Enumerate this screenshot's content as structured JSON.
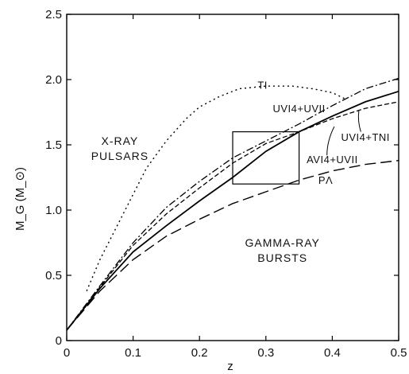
{
  "chart_data": {
    "type": "line",
    "xlabel": "z",
    "ylabel": "M_G (M_⊙)",
    "xlim": [
      0,
      0.5
    ],
    "ylim": [
      0,
      2.5
    ],
    "x_ticks": [
      "0",
      "0.1",
      "0.2",
      "0.3",
      "0.4",
      "0.5"
    ],
    "y_ticks": [
      "0",
      "0.5",
      "1.0",
      "1.5",
      "2.0",
      "2.5"
    ],
    "grid": false,
    "series": [
      {
        "name": "TI",
        "style": "dotted",
        "x": [
          0.03,
          0.05,
          0.08,
          0.1,
          0.12,
          0.15,
          0.18,
          0.2,
          0.23,
          0.26,
          0.3,
          0.34,
          0.37,
          0.4,
          0.42
        ],
        "y": [
          0.38,
          0.62,
          0.92,
          1.12,
          1.32,
          1.53,
          1.7,
          1.79,
          1.87,
          1.93,
          1.95,
          1.95,
          1.93,
          1.9,
          1.85
        ]
      },
      {
        "name": "UV14+UVII",
        "style": "dash-dot",
        "x": [
          0,
          0.05,
          0.1,
          0.15,
          0.2,
          0.25,
          0.3,
          0.35,
          0.4,
          0.45,
          0.5
        ],
        "y": [
          0.08,
          0.42,
          0.75,
          1.02,
          1.22,
          1.4,
          1.53,
          1.66,
          1.8,
          1.93,
          2.01
        ]
      },
      {
        "name": "UV14+TNI",
        "style": "short-dash",
        "x": [
          0,
          0.05,
          0.1,
          0.15,
          0.2,
          0.25,
          0.3,
          0.35,
          0.4,
          0.45,
          0.5
        ],
        "y": [
          0.08,
          0.41,
          0.73,
          0.97,
          1.17,
          1.36,
          1.51,
          1.6,
          1.7,
          1.78,
          1.83
        ]
      },
      {
        "name": "AV14+UVII",
        "style": "solid",
        "x": [
          0,
          0.05,
          0.1,
          0.15,
          0.2,
          0.25,
          0.3,
          0.35,
          0.4,
          0.45,
          0.5
        ],
        "y": [
          0.08,
          0.4,
          0.68,
          0.88,
          1.07,
          1.25,
          1.45,
          1.6,
          1.72,
          1.83,
          1.91
        ]
      },
      {
        "name": "PΛ",
        "style": "long-dash",
        "x": [
          0,
          0.05,
          0.1,
          0.15,
          0.2,
          0.25,
          0.3,
          0.35,
          0.4,
          0.45,
          0.5
        ],
        "y": [
          0.08,
          0.38,
          0.62,
          0.8,
          0.93,
          1.05,
          1.14,
          1.23,
          1.3,
          1.35,
          1.38
        ]
      }
    ],
    "box": {
      "x": [
        0.25,
        0.35
      ],
      "y": [
        1.2,
        1.6
      ]
    },
    "annotations": [
      {
        "text": "TI",
        "x": 0.295,
        "y": 1.93
      },
      {
        "text": "UVI4+UVII",
        "x": 0.35,
        "y": 1.75
      },
      {
        "text": "UVI4+TNI",
        "x": 0.45,
        "y": 1.53
      },
      {
        "text": "AVI4+UVII",
        "x": 0.4,
        "y": 1.36
      },
      {
        "text": "PΛ",
        "x": 0.39,
        "y": 1.2
      }
    ],
    "region_labels": [
      {
        "lines": [
          "X-RAY",
          "PULSARS"
        ],
        "x": 0.08,
        "y": 1.5
      },
      {
        "lines": [
          "GAMMA-RAY",
          "BURSTS"
        ],
        "x": 0.325,
        "y": 0.72
      }
    ]
  }
}
